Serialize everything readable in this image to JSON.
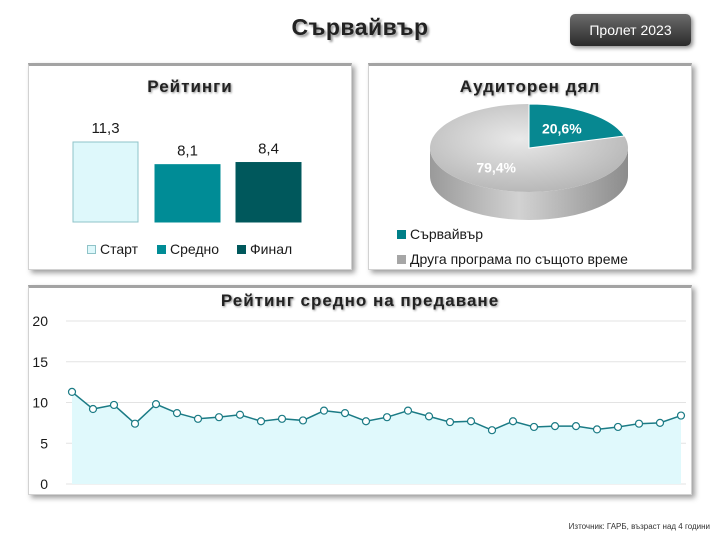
{
  "header": {
    "title": "Сървайвър",
    "season_button": "Пролет 2023"
  },
  "footer": {
    "source": "Източник: ГАРБ, възраст над 4 години"
  },
  "chart_data": [
    {
      "type": "bar",
      "title": "Рейтинги",
      "categories": [
        "Старт",
        "Средно",
        "Финал"
      ],
      "values": [
        11.3,
        8.1,
        8.4
      ],
      "value_labels": [
        "11,3",
        "8,1",
        "8,4"
      ],
      "colors": [
        "#def8fb",
        "#008c96",
        "#00585c"
      ],
      "strokes": [
        "#8fc3c8",
        "#008c96",
        "#00585c"
      ],
      "legend": "bottom"
    },
    {
      "type": "pie",
      "title": "Аудиторен дял",
      "labels": [
        "Сървайвър",
        "Друга програма по същото време"
      ],
      "values": [
        20.6,
        79.4
      ],
      "value_labels": [
        "20,6%",
        "79,4%"
      ],
      "colors": [
        "#078891",
        "#bdbdbd"
      ],
      "legend_colors": [
        "#007f88",
        "#a6a6a6"
      ],
      "legend": "bottom-left",
      "style": "3d"
    },
    {
      "type": "area",
      "title": "Рейтинг средно на предаване",
      "values": [
        11.3,
        9.2,
        9.7,
        7.4,
        9.8,
        8.7,
        8.0,
        8.2,
        8.5,
        7.7,
        8.0,
        7.8,
        9.0,
        8.7,
        7.7,
        8.2,
        9.0,
        8.3,
        7.6,
        7.7,
        6.6,
        7.7,
        7.0,
        7.1,
        7.1,
        6.7,
        7.0,
        7.4,
        7.5,
        8.4
      ],
      "ylim": [
        0,
        20
      ],
      "yticks": [
        "0",
        "5",
        "10",
        "15",
        "20"
      ],
      "grid": true,
      "markers": true,
      "line_color": "#1b7b85",
      "fill_color": "#e0f9fc"
    }
  ]
}
